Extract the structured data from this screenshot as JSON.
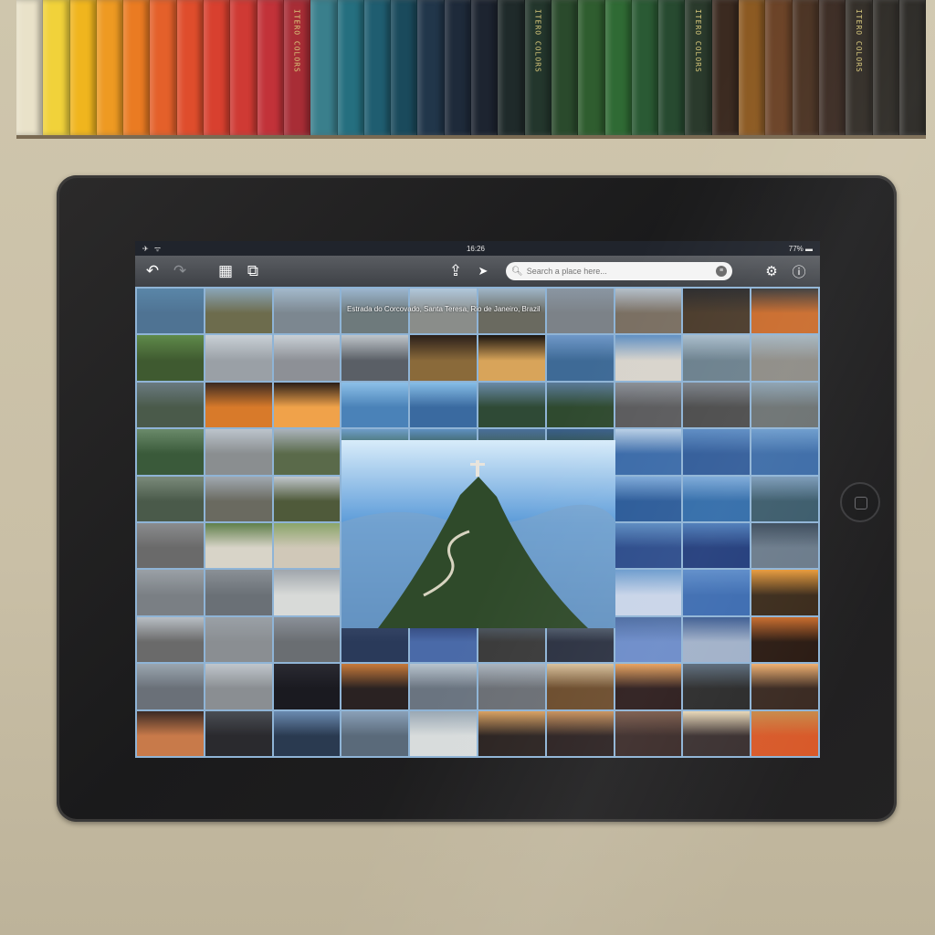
{
  "scene": {
    "pencils": {
      "brand_label": "ITERO COLORS",
      "colors": [
        "#e9e2c9",
        "#f1d23a",
        "#f0b51e",
        "#ee9a22",
        "#ea7b22",
        "#e4602a",
        "#df4d2c",
        "#d8402f",
        "#cf3a34",
        "#c23239",
        "#a82d36",
        "#3a7f8c",
        "#256f7f",
        "#1f5d70",
        "#1a4a5c",
        "#21364a",
        "#1e2a3a",
        "#1d2430",
        "#1f2a2a",
        "#23362c",
        "#2a4a2c",
        "#2f5d2f",
        "#2f6a34",
        "#2a5a34",
        "#274a30",
        "#2a3a2c",
        "#3b2a20",
        "#8c5a22",
        "#6b4226",
        "#4a3222",
        "#3a2a22",
        "#2f2a24",
        "#2a2722",
        "#262420"
      ]
    },
    "tablet": {
      "status_bar": {
        "signal": "✈ ᯤ",
        "time": "16:26",
        "battery": "77% ▬"
      },
      "toolbar": {
        "undo_icon": "↶",
        "redo_icon": "↷",
        "grid_icon": "▦",
        "layout_icon": "⧉",
        "share_icon": "⇪",
        "locate_icon": "➤",
        "search_placeholder": "Search a place here...",
        "settings_icon": "⚙",
        "info_icon": "ⓘ"
      },
      "location_label": "Estrada do Corcovado, Santa Teresa, Rio de Janeiro, Brazil",
      "mosaic_colors": [
        [
          "#5a86a8",
          "#4f7393"
        ],
        [
          "#8aa5b8",
          "#6d6c4d"
        ],
        [
          "#a3b9cb",
          "#7c8790"
        ],
        [
          "#9cb6cf",
          "#6e7a7c"
        ],
        [
          "#b0c7db",
          "#8a8d8a"
        ],
        [
          "#9fb5c8",
          "#6a6a60"
        ],
        [
          "#8a96a2",
          "#7c8288"
        ],
        [
          "#b4bfca",
          "#7a6f62"
        ],
        [
          "#2a2a2c",
          "#4a3a2a"
        ],
        [
          "#3a3a3a",
          "#c96a2a"
        ],
        [
          "#5f8a4a",
          "#3f5a30"
        ],
        [
          "#c9d0d6",
          "#9aa0a6"
        ],
        [
          "#c9d0d6",
          "#8d9096"
        ],
        [
          "#bfc5ca",
          "#5a5f66"
        ],
        [
          "#2a1f1a",
          "#8a6a3a"
        ],
        [
          "#1a1410",
          "#d8a45a"
        ],
        [
          "#6f98c8",
          "#3e6a96"
        ],
        [
          "#5f8fc2",
          "#d8d4cc"
        ],
        [
          "#a8bccb",
          "#6a7f8c"
        ],
        [
          "#a3b4bf",
          "#8c8a84"
        ],
        [
          "#6a7a80",
          "#4a5a4a"
        ],
        [
          "#3a2a22",
          "#d87a2a"
        ],
        [
          "#2a1e18",
          "#f0a24a"
        ],
        [
          "#8cc0e8",
          "#4a82b8"
        ],
        [
          "#86bde6",
          "#3a6aa0"
        ],
        [
          "#6a8aa8",
          "#2f4a36"
        ],
        [
          "#5a7a98",
          "#2f4a2f"
        ],
        [
          "#8a8f96",
          "#5a5a5c"
        ],
        [
          "#7a8088",
          "#4a4a4a"
        ],
        [
          "#8aa0b0",
          "#6a7070"
        ],
        [
          "#6a8a6a",
          "#3a5a3a"
        ],
        [
          "#bcc4cc",
          "#8a8e90"
        ],
        [
          "#aab3bc",
          "#5a6a4a"
        ],
        [
          "#6e9cc8",
          "#2f5a3a"
        ],
        [
          "#5f8fc0",
          "#2a4a2a"
        ],
        [
          "#4a6f9a",
          "#3a5a3a"
        ],
        [
          "#3a5f8a",
          "#2f4f2f"
        ],
        [
          "#b8cfe6",
          "#3a6aa8"
        ],
        [
          "#5a8ac2",
          "#2f5a98"
        ],
        [
          "#6a9acc",
          "#3a6aa6"
        ],
        [
          "#7a8a7a",
          "#4a5a4a"
        ],
        [
          "#a0a8b0",
          "#6a6a60"
        ],
        [
          "#c0c6cc",
          "#4f5a3a"
        ],
        [
          "#7aa4ce",
          "#2f5a3a"
        ],
        [
          "#6fa0cc",
          "#2a4a2a"
        ],
        [
          "#5a7f9a",
          "#3a4f30"
        ],
        [
          "#4a6f8a",
          "#2f4a2f"
        ],
        [
          "#7ca8d8",
          "#2a5a98"
        ],
        [
          "#7aa8d8",
          "#2f6aa8"
        ],
        [
          "#7a9ab8",
          "#3a5a6a"
        ],
        [
          "#8a8c8e",
          "#6a6a6a"
        ],
        [
          "#5f7f4a",
          "#d8d4c8"
        ],
        [
          "#8aa46a",
          "#d0c8b8"
        ],
        [
          "#1a2a5a",
          "#3a6ac8"
        ],
        [
          "#2a3a8a",
          "#1a2a6a"
        ],
        [
          "#a8b4c0",
          "#4a4a4a"
        ],
        [
          "#b8c0c8",
          "#2f3a40"
        ],
        [
          "#5a8ac0",
          "#2a4a8a"
        ],
        [
          "#4a7ab8",
          "#1f3a7a"
        ],
        [
          "#3a4a5a",
          "#6a7a8a"
        ],
        [
          "#9aa0a6",
          "#7a7f84"
        ],
        [
          "#8a9096",
          "#6a7076"
        ],
        [
          "#a0a6ac",
          "#d8dad8"
        ],
        [
          "#2a3a7a",
          "#4a7ad0"
        ],
        [
          "#d8e0e8",
          "#3a3a42"
        ],
        [
          "#7a8494",
          "#2f3a4a"
        ],
        [
          "#7a8a98",
          "#3a3f44"
        ],
        [
          "#6a9acc",
          "#c8d4e8"
        ],
        [
          "#5a8ac8",
          "#3a6ab0"
        ],
        [
          "#e89a3a",
          "#3a2a1a"
        ],
        [
          "#b8bec4",
          "#6a6a6a"
        ],
        [
          "#9aa0a6",
          "#8a8e92"
        ],
        [
          "#8a9098",
          "#6a6e72"
        ],
        [
          "#3a4a6a",
          "#2a3a5a"
        ],
        [
          "#2a3a6a",
          "#4a6aa8"
        ],
        [
          "#5a6a7a",
          "#3a3a3a"
        ],
        [
          "#6a7a8a",
          "#2a3040"
        ],
        [
          "#4a6aa0",
          "#6a8ac8"
        ],
        [
          "#3a5a90",
          "#a0b0c8"
        ],
        [
          "#c86a2a",
          "#2a1a12"
        ],
        [
          "#9aa6b0",
          "#6a7078"
        ],
        [
          "#c0c6cc",
          "#8a8e92"
        ],
        [
          "#2a2a32",
          "#1a1a20"
        ],
        [
          "#c87a3a",
          "#2a2222"
        ],
        [
          "#b8c4ce",
          "#6a7480"
        ],
        [
          "#aab4be",
          "#6a6e74"
        ],
        [
          "#d8c09a",
          "#6a4a2a"
        ],
        [
          "#e8a05a",
          "#2a1a1a"
        ],
        [
          "#5a6a7a",
          "#2a2a2a"
        ],
        [
          "#f0b070",
          "#3a2a22"
        ],
        [
          "#3a2a24",
          "#c87a4a"
        ],
        [
          "#4a4e54",
          "#2a2a2e"
        ],
        [
          "#6a8ab0",
          "#2a3a50"
        ],
        [
          "#8aa0b8",
          "#5a6a7a"
        ],
        [
          "#9aa8b4",
          "#d8dcdc"
        ],
        [
          "#d8a060",
          "#2a2220"
        ],
        [
          "#c8905a",
          "#2a2020"
        ],
        [
          "#7a5a4a",
          "#3a2a28"
        ],
        [
          "#e8d8b8",
          "#3a3030"
        ],
        [
          "#c88a4a",
          "#d85a2a"
        ]
      ]
    }
  }
}
